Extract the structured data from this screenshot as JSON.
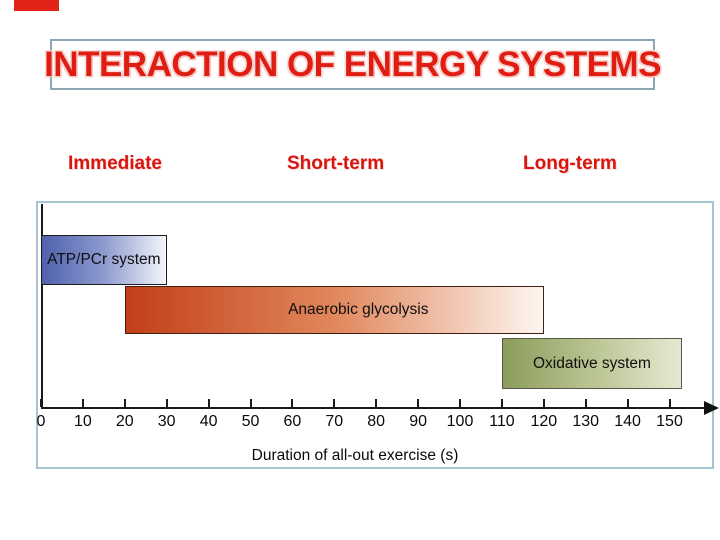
{
  "slide": {
    "title": "INTERACTION OF ENERGY SYSTEMS",
    "phase_labels": [
      "Immediate",
      "Short-term",
      "Long-term"
    ]
  },
  "colors": {
    "title_red": "#e01d12",
    "phase_red": "#d9150f",
    "accent_red": "#df2317",
    "title_box_border": "#8ca6b4",
    "chart_border": "#a6c4d2"
  },
  "chart_data": {
    "type": "bar",
    "orientation": "horizontal-span-gantt",
    "title": "",
    "xlabel": "Duration of all-out exercise (s)",
    "ylabel": "",
    "xlim": [
      0,
      160
    ],
    "x_ticks": [
      0,
      10,
      20,
      30,
      40,
      50,
      60,
      70,
      80,
      90,
      100,
      110,
      120,
      130,
      140,
      150
    ],
    "grid": false,
    "axis_arrow": "right",
    "bars": [
      {
        "label": "ATP/PCr system",
        "phase": "Immediate",
        "start_s": 0,
        "end_s": 30,
        "color_start": "#5061ae",
        "color_mid": "#8d9ace",
        "color_end": "#f4f5fc",
        "border_color": "#1c1c1c"
      },
      {
        "label": "Anaerobic glycolysis",
        "phase": "Short-term",
        "start_s": 20,
        "end_s": 120,
        "color_start": "#c23f18",
        "color_mid": "#e1875c",
        "color_end": "#fdf6f1",
        "border_color": "#3f2012"
      },
      {
        "label": "Oxidative system",
        "phase": "Long-term",
        "start_s": 110,
        "end_s": 153,
        "color_start": "#8c9c5c",
        "color_mid": "#b9c491",
        "color_end": "#e6e9d2",
        "border_color": "#595947"
      }
    ]
  }
}
